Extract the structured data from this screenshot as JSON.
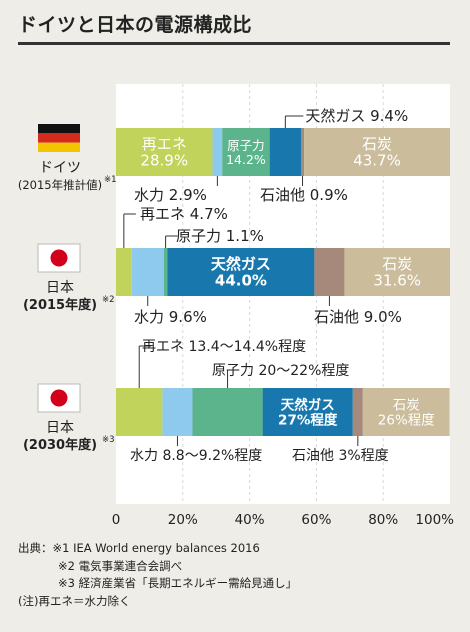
{
  "title": "ドイツと日本の電源構成比",
  "colors": {
    "renewable": "#c2d35c",
    "hydro": "#8ec9ee",
    "nuclear": "#5cb48c",
    "gas": "#1877ad",
    "oil": "#a6897a",
    "coal": "#cbbc9c",
    "background": "#eeede7",
    "plot_bg": "#ffffff"
  },
  "chart_data": {
    "type": "bar",
    "orientation": "horizontal",
    "stacked": true,
    "x_ticks": [
      "0",
      "20%",
      "40%",
      "60%",
      "80%",
      "100%"
    ],
    "xlim": [
      0,
      100
    ],
    "grid": true,
    "series_names": [
      "再エネ",
      "水力",
      "原子力",
      "天然ガス",
      "石油他",
      "石炭"
    ],
    "series_keys": [
      "renewable",
      "hydro",
      "nuclear",
      "gas",
      "oil",
      "coal"
    ],
    "rows": [
      {
        "country": "ドイツ",
        "note": "(2015年推計値)",
        "footnote_mark": "※1",
        "flag": "germany",
        "values": [
          28.9,
          2.9,
          14.2,
          9.4,
          0.9,
          43.7
        ],
        "labels": {
          "renewable_inside": "再エネ\n28.9%",
          "nuclear_inside": "原子力\n14.2%",
          "coal_inside": "石炭\n43.7%",
          "gas_callout": "天然ガス  9.4%",
          "hydro_callout": "水力  2.9%",
          "oil_callout": "石油他  0.9%"
        }
      },
      {
        "country": "日本",
        "note": "(2015年度)",
        "footnote_mark": "※2",
        "flag": "japan",
        "values": [
          4.7,
          9.6,
          1.1,
          44.0,
          9.0,
          31.6
        ],
        "labels": {
          "renewable_callout": "再エネ  4.7%",
          "nuclear_callout": "原子力  1.1%",
          "gas_inside": "天然ガス\n44.0%",
          "coal_inside": "石炭\n31.6%",
          "hydro_callout": "水力  9.6%",
          "oil_callout": "石油他  9.0%"
        }
      },
      {
        "country": "日本",
        "note": "(2030年度)",
        "footnote_mark": "※3",
        "flag": "japan",
        "values": [
          13.9,
          9.0,
          21.0,
          27.0,
          3.0,
          26.0
        ],
        "labels": {
          "renewable_callout": "再エネ  13.4～14.4%程度",
          "nuclear_callout": "原子力  20～22%程度",
          "gas_inside": "天然ガス\n27%程度",
          "coal_inside": "石炭\n26%程度",
          "hydro_callout": "水力  8.8～9.2%程度",
          "oil_callout": "石油他   3%程度"
        }
      }
    ]
  },
  "notes": [
    "出典：※1 IEA World energy balances 2016",
    "※2 電気事業連合会調べ",
    "※3 経済産業省「長期エネルギー需給見通し」",
    "(注)再エネ＝水力除く"
  ]
}
